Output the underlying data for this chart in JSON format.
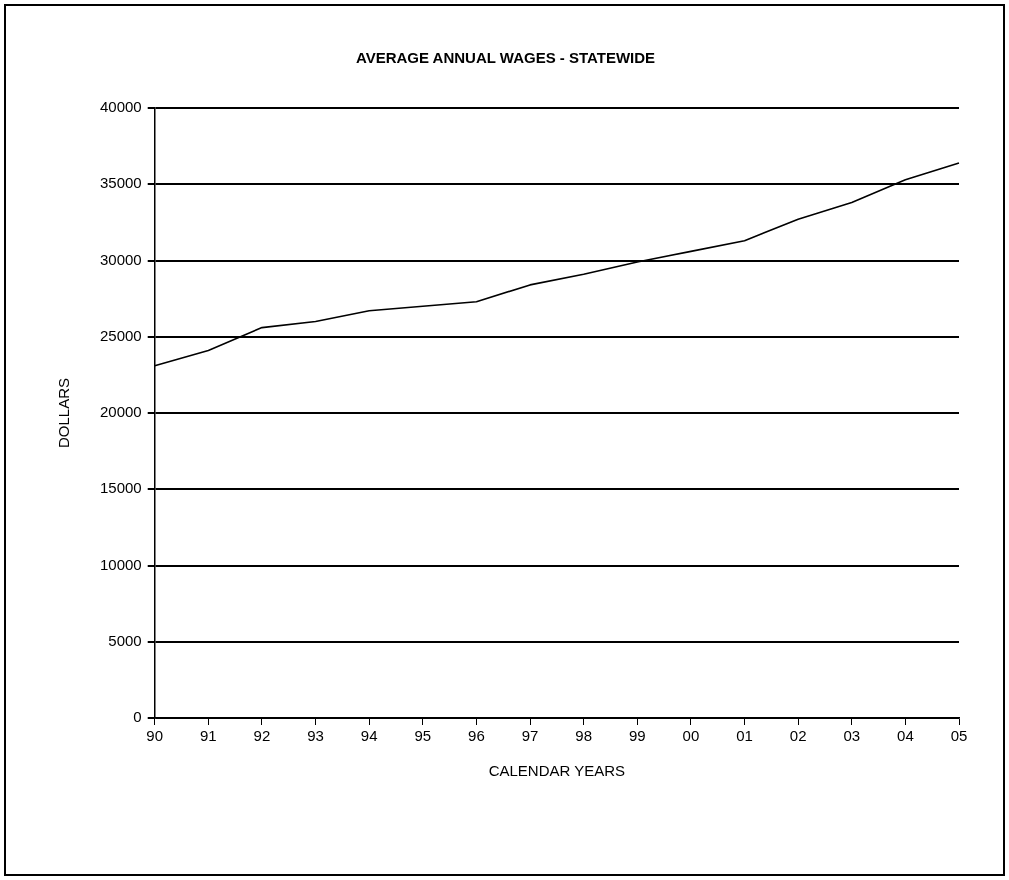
{
  "chart_data": {
    "type": "line",
    "title": "AVERAGE ANNUAL WAGES - STATEWIDE",
    "xlabel": "CALENDAR YEARS",
    "ylabel": "DOLLARS",
    "categories": [
      "90",
      "91",
      "92",
      "93",
      "94",
      "95",
      "96",
      "97",
      "98",
      "99",
      "00",
      "01",
      "02",
      "03",
      "04",
      "05"
    ],
    "series": [
      {
        "color": "#000000",
        "values": [
          23100,
          24100,
          25600,
          26000,
          26700,
          27000,
          27300,
          28400,
          29100,
          29900,
          30600,
          31300,
          32700,
          33800,
          35300,
          36400
        ]
      }
    ],
    "ylim": [
      0,
      40000
    ],
    "yticks": [
      0,
      5000,
      10000,
      15000,
      20000,
      25000,
      30000,
      35000,
      40000
    ],
    "grid": "y",
    "legend": false,
    "marker": "none",
    "line_style": "solid"
  }
}
